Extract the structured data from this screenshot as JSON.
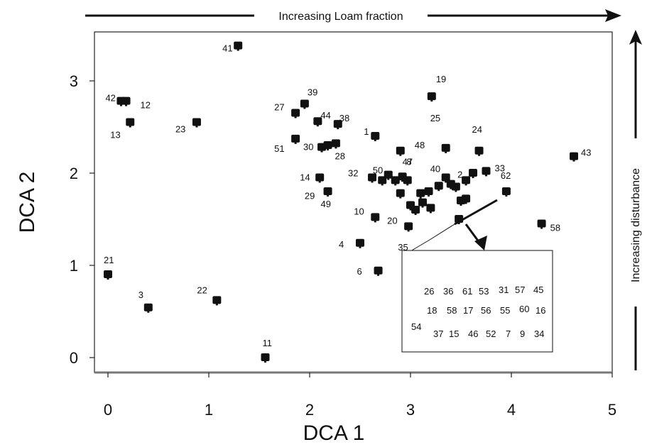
{
  "chart_data": {
    "type": "scatter",
    "xlabel": "DCA 1",
    "ylabel": "DCA 2",
    "xlim": [
      -0.2,
      5.1
    ],
    "ylim": [
      -0.18,
      3.55
    ],
    "xticks": [
      "0",
      "1",
      "2",
      "3",
      "4",
      "5"
    ],
    "yticks": [
      "0",
      "1",
      "2",
      "3"
    ],
    "grid": false,
    "top_annotation": "Increasing Loam fraction",
    "right_annotation": "Increasing disturbance",
    "points": [
      {
        "x": 1.29,
        "y": 3.38,
        "label": "41"
      },
      {
        "x": 3.21,
        "y": 2.83,
        "label": "19"
      },
      {
        "x": 0.13,
        "y": 2.78,
        "label": "42"
      },
      {
        "x": 0.18,
        "y": 2.78,
        "label": "12"
      },
      {
        "x": 0.22,
        "y": 2.55,
        "label": "13"
      },
      {
        "x": 0.88,
        "y": 2.55,
        "label": "23"
      },
      {
        "x": 1.95,
        "y": 2.75,
        "label": "39"
      },
      {
        "x": 1.86,
        "y": 2.65,
        "label": "27"
      },
      {
        "x": 2.08,
        "y": 2.56,
        "label": "44"
      },
      {
        "x": 2.28,
        "y": 2.53,
        "label": "38"
      },
      {
        "x": 1.86,
        "y": 2.37,
        "label": "51"
      },
      {
        "x": 2.12,
        "y": 2.28,
        "label": "30"
      },
      {
        "x": 2.26,
        "y": 2.32,
        "label": ""
      },
      {
        "x": 2.18,
        "y": 2.3,
        "label": ""
      },
      {
        "x": 2.1,
        "y": 1.95,
        "label": "14"
      },
      {
        "x": 2.18,
        "y": 1.8,
        "label": "49"
      },
      {
        "x": 2.65,
        "y": 2.4,
        "label": "1"
      },
      {
        "x": 2.9,
        "y": 2.24,
        "label": "48"
      },
      {
        "x": 3.35,
        "y": 2.27,
        "label": "25"
      },
      {
        "x": 3.68,
        "y": 2.24,
        "label": "24"
      },
      {
        "x": 4.62,
        "y": 2.18,
        "label": "43"
      },
      {
        "x": 2.62,
        "y": 1.95,
        "label": "32"
      },
      {
        "x": 2.78,
        "y": 1.98,
        "label": "50"
      },
      {
        "x": 2.92,
        "y": 1.96,
        "label": ""
      },
      {
        "x": 2.97,
        "y": 1.92,
        "label": ""
      },
      {
        "x": 3.35,
        "y": 1.95,
        "label": "40"
      },
      {
        "x": 3.55,
        "y": 1.92,
        "label": "2"
      },
      {
        "x": 3.62,
        "y": 2.0,
        "label": ""
      },
      {
        "x": 3.75,
        "y": 2.02,
        "label": "33"
      },
      {
        "x": 3.95,
        "y": 1.8,
        "label": "62"
      },
      {
        "x": 2.65,
        "y": 1.52,
        "label": "10"
      },
      {
        "x": 2.98,
        "y": 1.42,
        "label": "20"
      },
      {
        "x": 2.5,
        "y": 1.24,
        "label": "4"
      },
      {
        "x": 3.03,
        "y": 1.07,
        "label": "35"
      },
      {
        "x": 2.68,
        "y": 0.94,
        "label": "6"
      },
      {
        "x": 4.3,
        "y": 1.45,
        "label": "58"
      },
      {
        "x": 3.48,
        "y": 1.5,
        "label": ""
      },
      {
        "x": 3.0,
        "y": 1.65,
        "label": ""
      },
      {
        "x": 3.05,
        "y": 1.6,
        "label": ""
      },
      {
        "x": 3.12,
        "y": 1.68,
        "label": ""
      },
      {
        "x": 3.2,
        "y": 1.62,
        "label": ""
      },
      {
        "x": 3.1,
        "y": 1.78,
        "label": ""
      },
      {
        "x": 3.18,
        "y": 1.8,
        "label": ""
      },
      {
        "x": 3.28,
        "y": 1.86,
        "label": ""
      },
      {
        "x": 3.4,
        "y": 1.88,
        "label": ""
      },
      {
        "x": 3.45,
        "y": 1.85,
        "label": ""
      },
      {
        "x": 3.5,
        "y": 1.7,
        "label": ""
      },
      {
        "x": 3.55,
        "y": 1.72,
        "label": ""
      },
      {
        "x": 2.9,
        "y": 1.78,
        "label": ""
      },
      {
        "x": 2.72,
        "y": 1.92,
        "label": ""
      },
      {
        "x": 2.85,
        "y": 1.92,
        "label": ""
      },
      {
        "x": 0.0,
        "y": 0.9,
        "label": "21"
      },
      {
        "x": 0.4,
        "y": 0.54,
        "label": "3"
      },
      {
        "x": 1.08,
        "y": 0.62,
        "label": "22"
      },
      {
        "x": 1.56,
        "y": 0.0,
        "label": "11"
      }
    ],
    "extra_labels": [
      {
        "x": 2.25,
        "y": 2.15,
        "text": "28"
      },
      {
        "x": 1.95,
        "y": 1.72,
        "text": "29"
      },
      {
        "x": 2.92,
        "y": 2.09,
        "text": "47"
      },
      {
        "x": 2.96,
        "y": 2.09,
        "text": "8"
      },
      {
        "x": 3.6,
        "y": 2.01,
        "text": ""
      }
    ],
    "inset_labels": [
      [
        "26",
        "36",
        "61",
        "53",
        "31",
        "57",
        "45"
      ],
      [
        "18",
        "58",
        "17",
        "56",
        "55",
        "60",
        "16"
      ],
      [
        "54",
        "37",
        "15",
        "46",
        "52",
        "7",
        "9",
        "34"
      ]
    ]
  }
}
